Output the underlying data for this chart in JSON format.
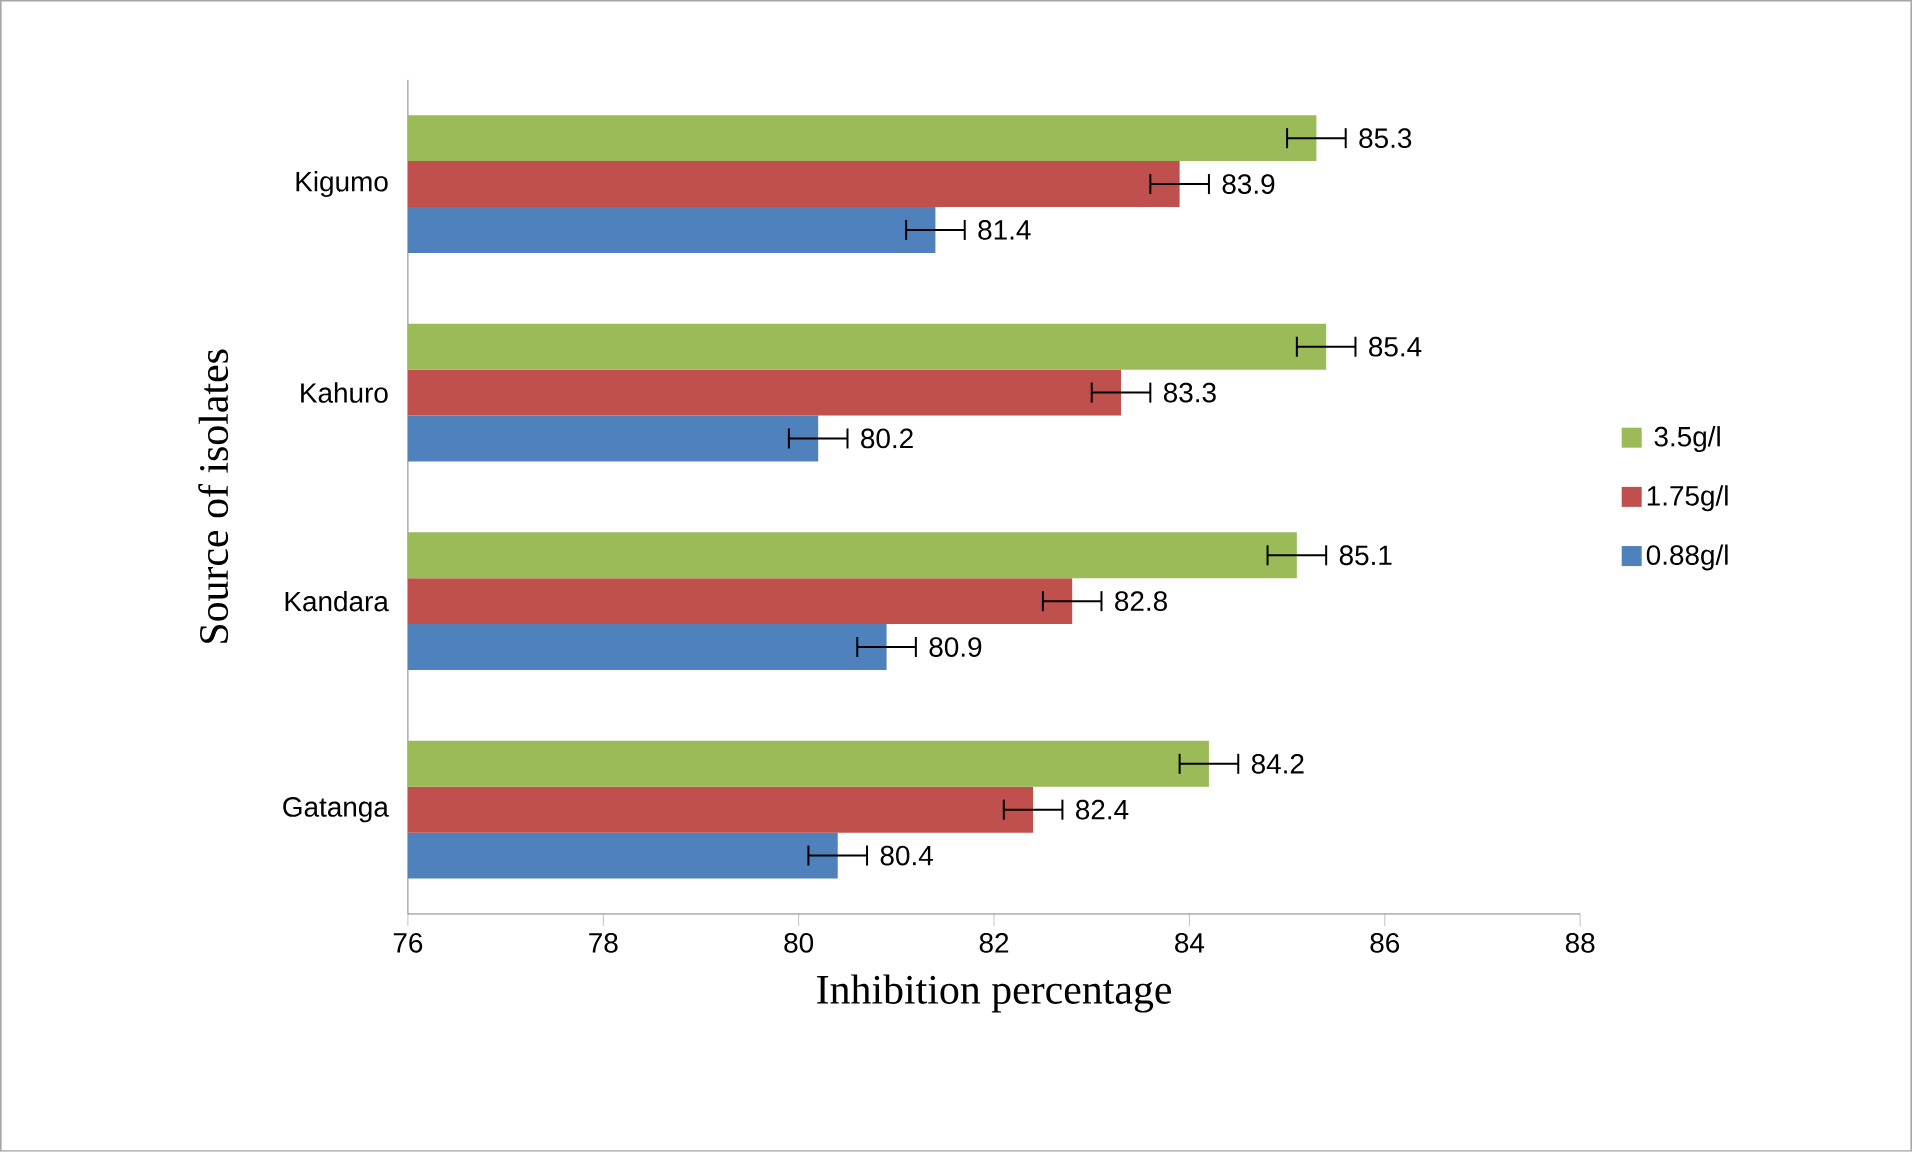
{
  "chart_data": {
    "type": "bar",
    "orientation": "horizontal",
    "categories": [
      "Kigumo",
      "Kahuro",
      "Kandara",
      "Gatanga"
    ],
    "series": [
      {
        "name": "0.88g/l",
        "color": "#4f81bd",
        "values": [
          81.4,
          80.2,
          80.9,
          80.4
        ],
        "errors": [
          0.3,
          0.3,
          0.3,
          0.3
        ]
      },
      {
        "name": "1.75g/l",
        "color": "#c0504d",
        "values": [
          83.9,
          83.3,
          82.8,
          82.4
        ],
        "errors": [
          0.3,
          0.3,
          0.3,
          0.3
        ]
      },
      {
        "name": "3.5g/l",
        "color": "#9bbb59",
        "values": [
          85.3,
          85.4,
          85.1,
          84.2
        ],
        "errors": [
          0.3,
          0.3,
          0.3,
          0.3
        ]
      }
    ],
    "xlim": [
      76,
      88
    ],
    "xticks": [
      76,
      78,
      80,
      82,
      84,
      86,
      88
    ],
    "xlabel": "Inhibition percentage",
    "ylabel": "Source of isolates",
    "legend": "right",
    "data_labels": true
  }
}
